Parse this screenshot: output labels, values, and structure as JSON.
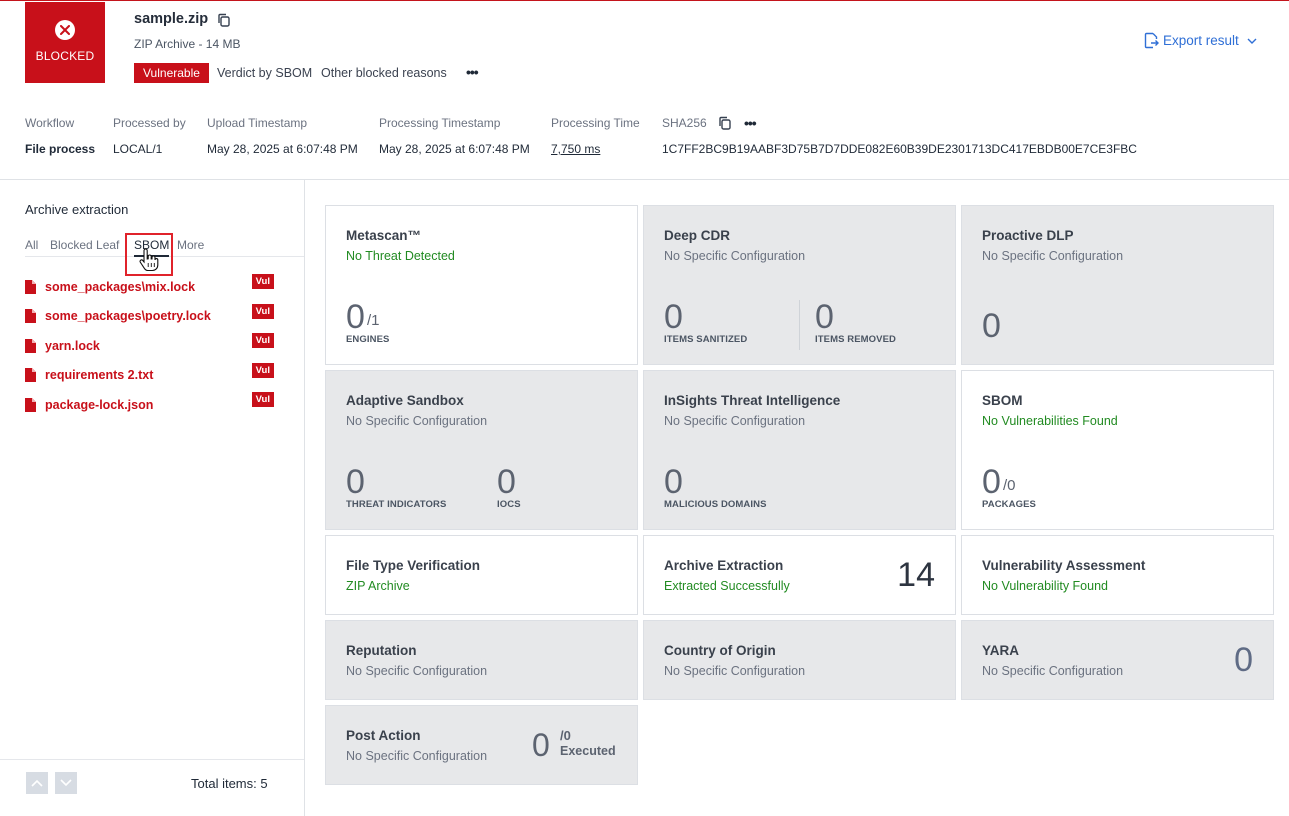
{
  "header": {
    "status_label": "BLOCKED",
    "file_name": "sample.zip",
    "file_sub": "ZIP Archive - 14 MB",
    "vuln_badge": "Vulnerable",
    "verdict": "Verdict by SBOM",
    "other_reasons": "Other blocked reasons",
    "export_label": "Export result",
    "accent": "#c8101a",
    "link_color": "#2f6fd6"
  },
  "meta": {
    "workflow": {
      "key": "Workflow",
      "value": "File process"
    },
    "processed_by": {
      "key": "Processed by",
      "value": "LOCAL/1"
    },
    "upload": {
      "key": "Upload Timestamp",
      "value": "May 28, 2025 at 6:07:48 PM"
    },
    "processing": {
      "key": "Processing Timestamp",
      "value": "May 28, 2025 at 6:07:48 PM"
    },
    "time": {
      "key": "Processing Time",
      "value": "7,750 ms"
    },
    "sha": {
      "key": "SHA256",
      "value": "1C7FF2BC9B19AABF3D75B7D7DDE082E60B39DE2301713DC417EBDB00E7CE3FBC"
    }
  },
  "sidebar": {
    "title": "Archive extraction",
    "tabs": [
      "All",
      "Blocked Leaf",
      "SBOM",
      "More"
    ],
    "active_tab": "SBOM",
    "files": [
      {
        "name": "some_packages\\mix.lock",
        "badge": "Vul"
      },
      {
        "name": "some_packages\\poetry.lock",
        "badge": "Vul"
      },
      {
        "name": "yarn.lock",
        "badge": "Vul"
      },
      {
        "name": "requirements 2.txt",
        "badge": "Vul"
      },
      {
        "name": "package-lock.json",
        "badge": "Vul"
      }
    ],
    "total": "Total items: 5"
  },
  "cards": {
    "metascan": {
      "title": "Metascan™",
      "sub": "No Threat Detected",
      "value": "0",
      "of": "/1",
      "cap": "ENGINES"
    },
    "deepcdr": {
      "title": "Deep CDR",
      "sub": "No Specific Configuration",
      "v1": "0",
      "c1": "ITEMS SANITIZED",
      "v2": "0",
      "c2": "ITEMS REMOVED"
    },
    "dlp": {
      "title": "Proactive DLP",
      "sub": "No Specific Configuration",
      "value": "0"
    },
    "sandbox": {
      "title": "Adaptive Sandbox",
      "sub": "No Specific Configuration",
      "v1": "0",
      "c1": "THREAT INDICATORS",
      "v2": "0",
      "c2": "IOCS"
    },
    "insights": {
      "title": "InSights Threat Intelligence",
      "sub": "No Specific Configuration",
      "value": "0",
      "cap": "MALICIOUS DOMAINS"
    },
    "sbom": {
      "title": "SBOM",
      "sub": "No Vulnerabilities Found",
      "value": "0",
      "of": "/0",
      "cap": "PACKAGES"
    },
    "ftv": {
      "title": "File Type Verification",
      "sub": "ZIP Archive"
    },
    "archive": {
      "title": "Archive Extraction",
      "sub": "Extracted Successfully",
      "value": "14"
    },
    "vuln": {
      "title": "Vulnerability Assessment",
      "sub": "No Vulnerability Found"
    },
    "reputation": {
      "title": "Reputation",
      "sub": "No Specific Configuration"
    },
    "country": {
      "title": "Country of Origin",
      "sub": "No Specific Configuration"
    },
    "yara": {
      "title": "YARA",
      "sub": "No Specific Configuration",
      "value": "0"
    },
    "post": {
      "title": "Post Action",
      "sub": "No Specific Configuration",
      "value": "0",
      "of": "/0",
      "executed": "Executed"
    }
  }
}
